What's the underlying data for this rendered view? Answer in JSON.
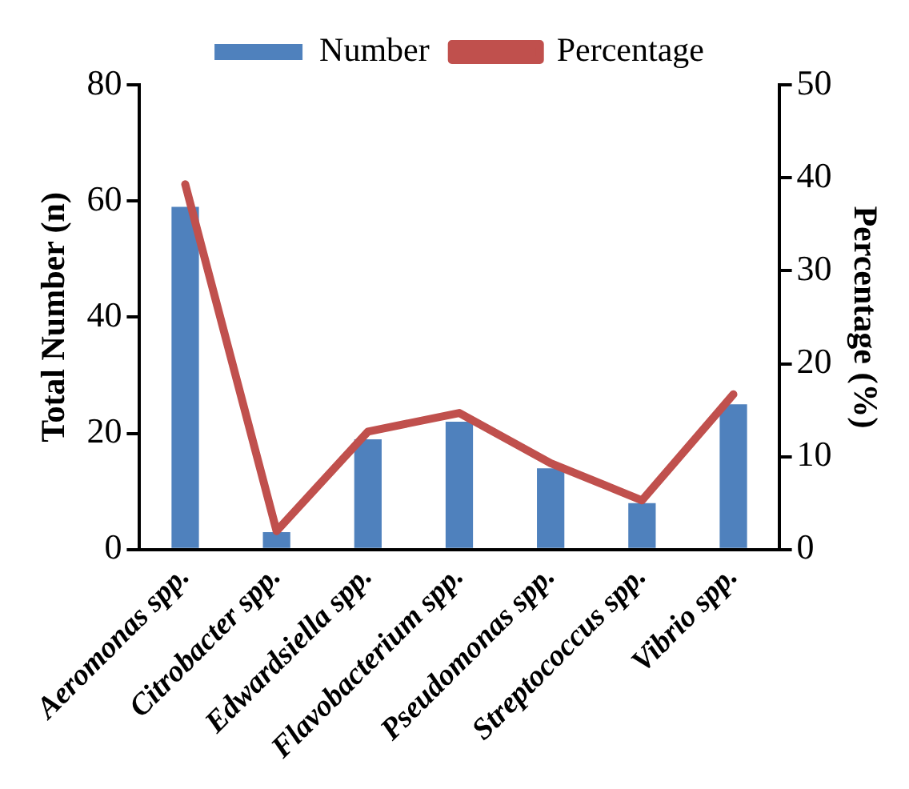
{
  "chart_data": {
    "type": "bar",
    "categories": [
      "Aeromonas spp.",
      "Citrobacter spp.",
      "Edwardsiella spp.",
      "Flavobacterium spp.",
      "Pseudomonas spp.",
      "Streptococcus spp.",
      "Vibrio spp."
    ],
    "series": [
      {
        "name": "Number",
        "color": "#4f81bd",
        "values": [
          59,
          3,
          19,
          22,
          14,
          8,
          25
        ]
      },
      {
        "name": "Percentage",
        "type": "line",
        "axis": "y2",
        "color": "#c0504d",
        "values": [
          39.3,
          2,
          12.7,
          14.7,
          9.3,
          5.3,
          16.7
        ]
      }
    ],
    "ylabel": "Total Number (n)",
    "y2label": "Percentage (%)",
    "ylim": [
      0,
      80
    ],
    "yticks": [
      0,
      20,
      40,
      60,
      80
    ],
    "y2lim": [
      0,
      50
    ],
    "y2ticks": [
      0,
      10,
      20,
      30,
      40,
      50
    ],
    "legend": "top",
    "grid": false,
    "marker": "none"
  }
}
